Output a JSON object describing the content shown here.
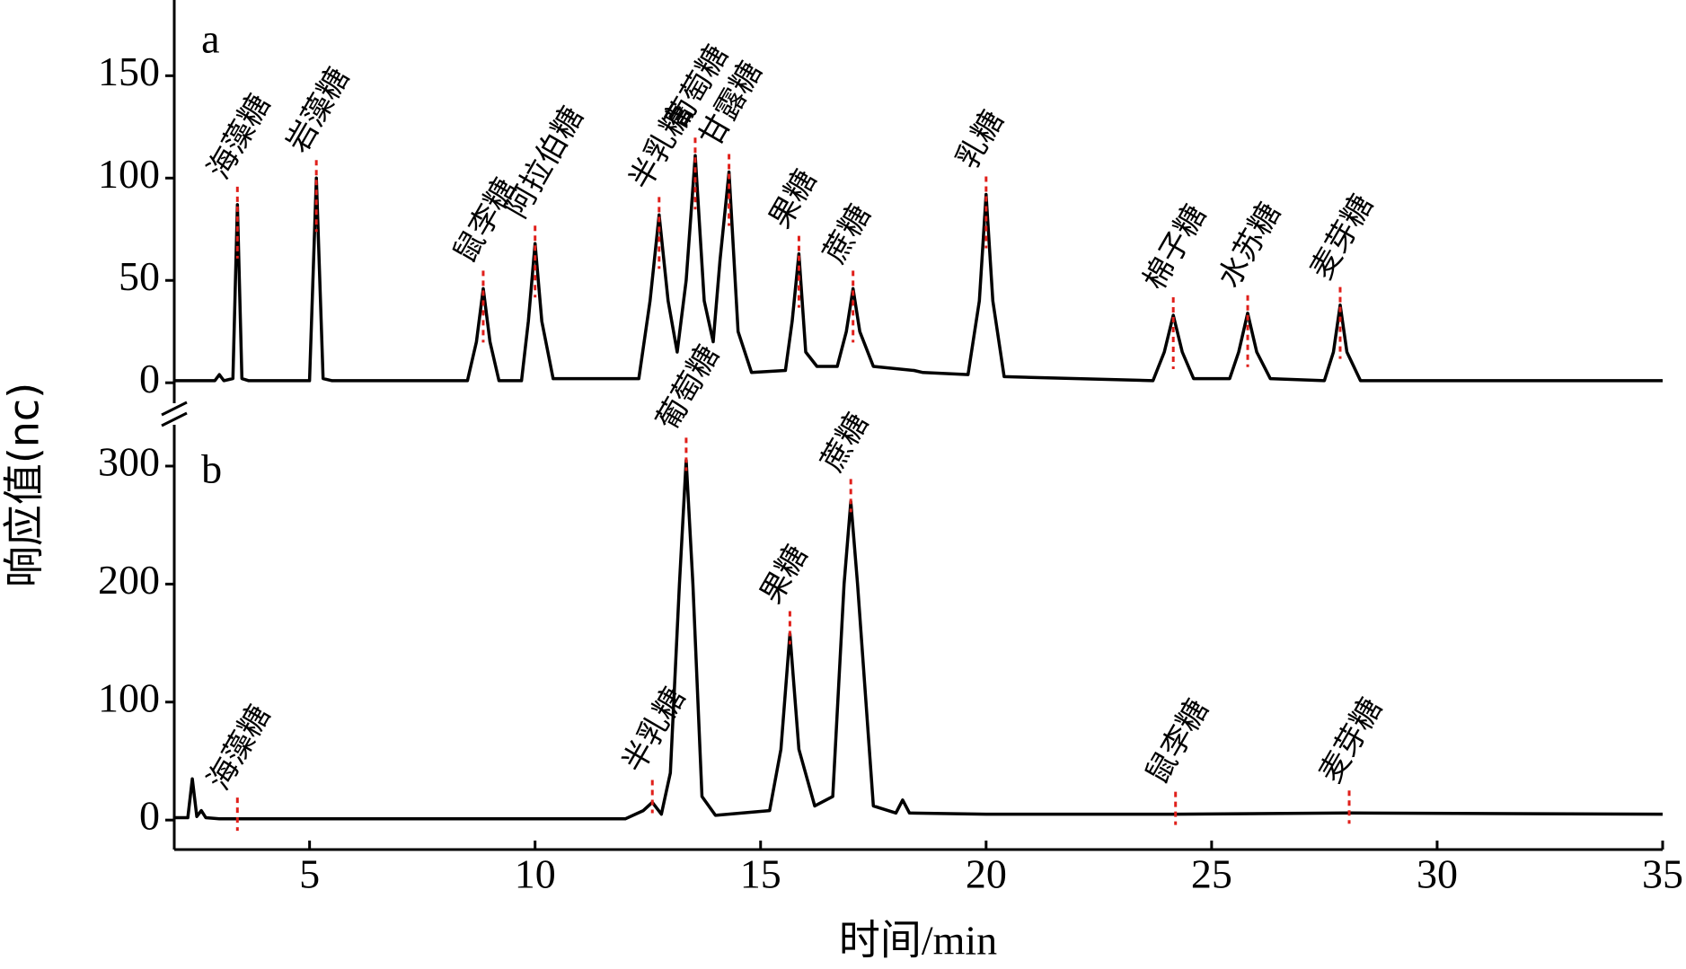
{
  "y_label": "响应值(nc)",
  "chart_data": [
    {
      "type": "line",
      "panel_label": "a",
      "color": "#000000",
      "marker_color": "#e0201b",
      "xlim": [
        2,
        35
      ],
      "ylim": [
        -10,
        187
      ],
      "yticks": [
        0,
        50,
        100,
        150
      ],
      "x": [
        2.0,
        2.9,
        3.0,
        3.1,
        3.3,
        3.4,
        3.5,
        3.65,
        5.0,
        5.15,
        5.3,
        5.5,
        8.5,
        8.7,
        8.85,
        9.0,
        9.2,
        9.7,
        9.85,
        10.0,
        10.15,
        10.4,
        12.3,
        12.55,
        12.75,
        12.95,
        13.15,
        13.35,
        13.55,
        13.75,
        13.95,
        14.1,
        14.3,
        14.5,
        14.8,
        15.55,
        15.7,
        15.85,
        16.0,
        16.25,
        16.7,
        16.9,
        17.05,
        17.2,
        17.5,
        18.4,
        18.6,
        19.6,
        19.85,
        20.0,
        20.15,
        20.4,
        23.7,
        23.95,
        24.15,
        24.35,
        24.6,
        25.4,
        25.6,
        25.8,
        26.0,
        26.3,
        27.5,
        27.7,
        27.85,
        28.0,
        28.3,
        35
      ],
      "values": [
        1,
        1,
        4,
        1,
        2,
        87,
        2,
        1,
        1,
        100,
        2,
        1,
        1,
        20,
        46,
        20,
        1,
        1,
        30,
        68,
        30,
        2,
        2,
        40,
        82,
        40,
        15,
        50,
        111,
        40,
        20,
        60,
        103,
        25,
        5,
        6,
        30,
        63,
        15,
        8,
        8,
        25,
        46,
        25,
        8,
        6,
        5,
        4,
        40,
        92,
        40,
        3,
        1,
        15,
        33,
        15,
        2,
        2,
        15,
        34,
        15,
        2,
        1,
        15,
        38,
        15,
        1,
        1
      ],
      "annotations": [
        {
          "text": "海藻糖",
          "x": 3.4,
          "y": 87
        },
        {
          "text": "岩藻糖",
          "x": 5.15,
          "y": 100
        },
        {
          "text": "鼠李糖",
          "x": 8.85,
          "y": 46
        },
        {
          "text": "阿拉伯糖",
          "x": 10.0,
          "y": 68
        },
        {
          "text": "半乳糖",
          "x": 12.75,
          "y": 82
        },
        {
          "text": "葡萄糖",
          "x": 13.55,
          "y": 111
        },
        {
          "text": "甘露糖",
          "x": 14.3,
          "y": 103
        },
        {
          "text": "果糖",
          "x": 15.85,
          "y": 63
        },
        {
          "text": "蔗糖",
          "x": 17.05,
          "y": 46
        },
        {
          "text": "乳糖",
          "x": 20.0,
          "y": 92
        },
        {
          "text": "棉子糖",
          "x": 24.15,
          "y": 33
        },
        {
          "text": "水苏糖",
          "x": 25.8,
          "y": 34
        },
        {
          "text": "麦芽糖",
          "x": 27.85,
          "y": 38
        }
      ]
    },
    {
      "type": "line",
      "panel_label": "b",
      "color": "#000000",
      "marker_color": "#e0201b",
      "x_label": "时间/min",
      "xlim": [
        2,
        35
      ],
      "xticks": [
        5,
        10,
        15,
        20,
        25,
        30,
        35
      ],
      "ylim": [
        -25,
        335
      ],
      "yticks": [
        0,
        100,
        200,
        300
      ],
      "x": [
        2.0,
        2.3,
        2.4,
        2.5,
        2.6,
        2.7,
        3.0,
        12.0,
        12.4,
        12.6,
        12.8,
        13.0,
        13.2,
        13.35,
        13.5,
        13.7,
        14.0,
        15.2,
        15.45,
        15.65,
        15.85,
        16.2,
        16.6,
        16.85,
        17.0,
        17.15,
        17.5,
        18.0,
        18.15,
        18.3,
        20,
        24.2,
        28.05,
        35
      ],
      "values": [
        2,
        2,
        35,
        3,
        8,
        2,
        1,
        1,
        8,
        15,
        5,
        40,
        200,
        305,
        200,
        20,
        4,
        8,
        60,
        158,
        60,
        12,
        20,
        200,
        270,
        200,
        12,
        6,
        17,
        6,
        5,
        5,
        6,
        5
      ],
      "annotations": [
        {
          "text": "海藻糖",
          "x": 3.4,
          "y": 0
        },
        {
          "text": "半乳糖",
          "x": 12.6,
          "y": 15
        },
        {
          "text": "葡萄糖",
          "x": 13.35,
          "y": 305
        },
        {
          "text": "果糖",
          "x": 15.65,
          "y": 158
        },
        {
          "text": "蔗糖",
          "x": 17.0,
          "y": 270
        },
        {
          "text": "鼠李糖",
          "x": 24.2,
          "y": 5
        },
        {
          "text": "麦芽糖",
          "x": 28.05,
          "y": 6
        }
      ]
    }
  ]
}
